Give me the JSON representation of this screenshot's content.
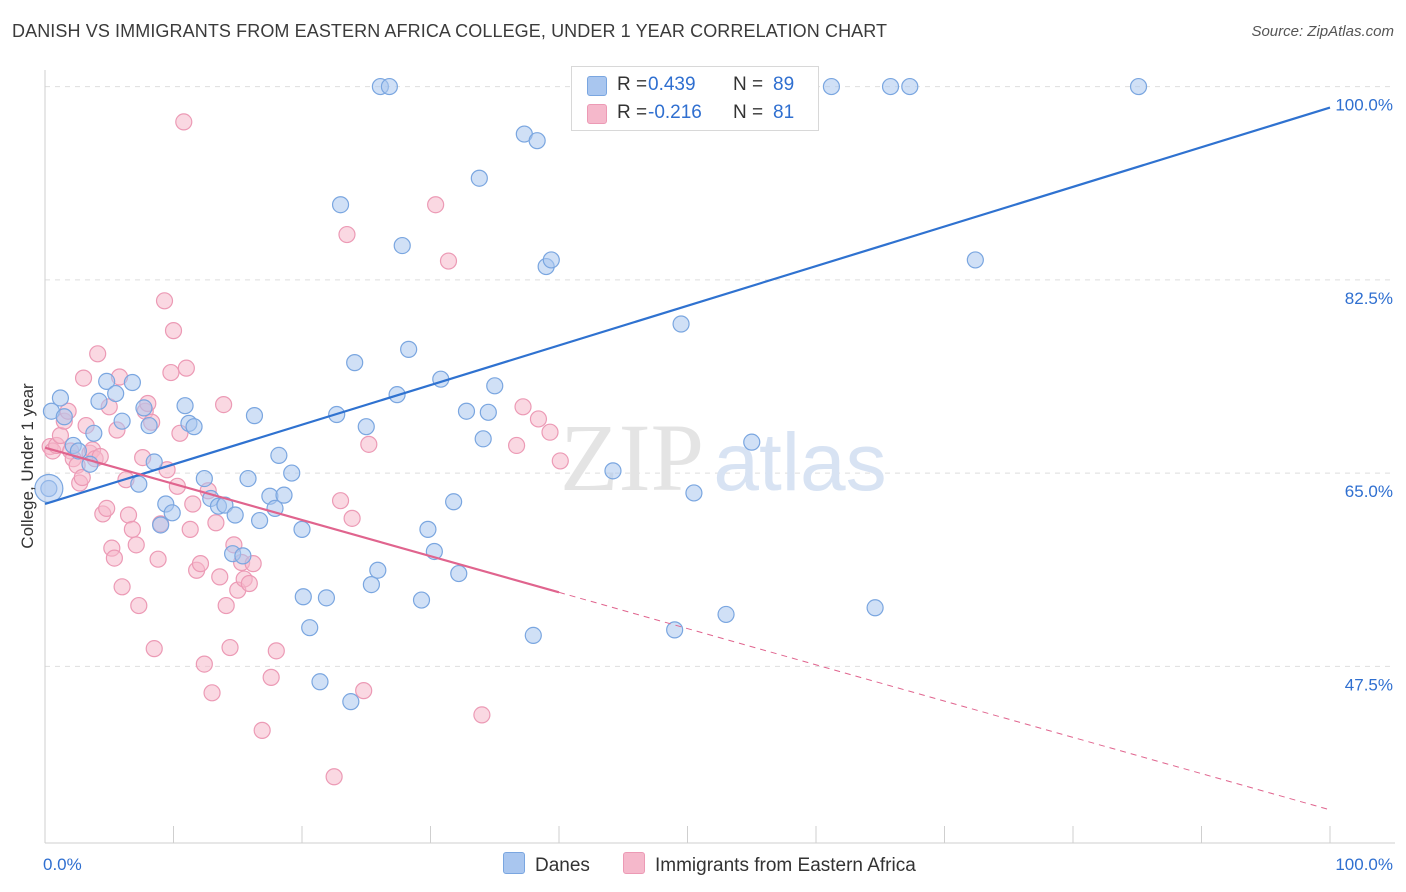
{
  "title": "DANISH VS IMMIGRANTS FROM EASTERN AFRICA COLLEGE, UNDER 1 YEAR CORRELATION CHART",
  "source": "Source: ZipAtlas.com",
  "watermark": {
    "zip": "ZIP",
    "atlas": "atlas"
  },
  "colors": {
    "danes_fill": "#a9c6ef",
    "danes_stroke": "#7aa6e0",
    "danes_line": "#2f72d0",
    "imm_fill": "#f5b8cb",
    "imm_stroke": "#ec9ab5",
    "imm_line": "#e0648e",
    "value_text": "#2f6fd0",
    "grid": "#dedede"
  },
  "legend_top": {
    "rows": [
      {
        "r_label": "R =",
        "r_value": "0.439",
        "n_label": "N =",
        "n_value": "89"
      },
      {
        "r_label": "R =",
        "r_value": "-0.216",
        "n_label": "N =",
        "n_value": "81"
      }
    ]
  },
  "legend_bottom": {
    "danes": "Danes",
    "immigrants": "Immigrants from Eastern Africa"
  },
  "chart_data": {
    "type": "scatter",
    "title": "DANISH VS IMMIGRANTS FROM EASTERN AFRICA COLLEGE, UNDER 1 YEAR CORRELATION CHART",
    "xlabel": "",
    "ylabel": "College, Under 1 year",
    "xlim": [
      0,
      100
    ],
    "ylim": [
      31.5,
      101.5
    ],
    "x_tick_labels": [
      "0.0%",
      "100.0%"
    ],
    "y_ticks": [
      47.5,
      65.0,
      82.5,
      100.0
    ],
    "y_tick_labels": [
      "47.5%",
      "65.0%",
      "82.5%",
      "100.0%"
    ],
    "grid": true,
    "legend_position": "bottom-center",
    "series": [
      {
        "name": "Danes",
        "R": 0.439,
        "N": 89,
        "trend": {
          "x": [
            0,
            100
          ],
          "y": [
            62.2,
            98.1
          ],
          "style": "solid"
        },
        "points": [
          [
            0.3,
            63.6
          ],
          [
            0.5,
            70.6
          ],
          [
            1.2,
            71.8
          ],
          [
            1.5,
            70.1
          ],
          [
            2.2,
            67.5
          ],
          [
            2.6,
            67.0
          ],
          [
            3.5,
            65.8
          ],
          [
            3.8,
            68.6
          ],
          [
            4.2,
            71.5
          ],
          [
            4.8,
            73.3
          ],
          [
            5.5,
            72.2
          ],
          [
            6.0,
            69.7
          ],
          [
            6.8,
            73.2
          ],
          [
            7.3,
            64.0
          ],
          [
            7.7,
            70.9
          ],
          [
            8.1,
            69.3
          ],
          [
            8.5,
            66.0
          ],
          [
            9.0,
            60.3
          ],
          [
            9.4,
            62.2
          ],
          [
            9.9,
            61.4
          ],
          [
            10.9,
            71.1
          ],
          [
            11.2,
            69.5
          ],
          [
            11.6,
            69.2
          ],
          [
            12.4,
            64.5
          ],
          [
            12.9,
            62.7
          ],
          [
            13.5,
            62.0
          ],
          [
            14.0,
            62.1
          ],
          [
            14.6,
            57.7
          ],
          [
            14.8,
            61.2
          ],
          [
            15.4,
            57.5
          ],
          [
            15.8,
            64.5
          ],
          [
            16.3,
            70.2
          ],
          [
            16.7,
            60.7
          ],
          [
            17.5,
            62.9
          ],
          [
            17.9,
            61.8
          ],
          [
            18.2,
            66.6
          ],
          [
            18.6,
            63.0
          ],
          [
            19.2,
            65.0
          ],
          [
            20.0,
            59.9
          ],
          [
            20.1,
            53.8
          ],
          [
            20.6,
            51.0
          ],
          [
            21.4,
            46.1
          ],
          [
            21.9,
            53.7
          ],
          [
            22.7,
            70.3
          ],
          [
            23.0,
            89.3
          ],
          [
            23.8,
            44.3
          ],
          [
            24.1,
            75.0
          ],
          [
            25.0,
            69.2
          ],
          [
            25.4,
            54.9
          ],
          [
            25.9,
            56.2
          ],
          [
            26.1,
            100.0
          ],
          [
            26.8,
            100.0
          ],
          [
            27.4,
            72.1
          ],
          [
            27.8,
            85.6
          ],
          [
            28.3,
            76.2
          ],
          [
            29.3,
            53.5
          ],
          [
            29.8,
            59.9
          ],
          [
            30.3,
            57.9
          ],
          [
            30.8,
            73.5
          ],
          [
            31.8,
            62.4
          ],
          [
            32.2,
            55.9
          ],
          [
            32.8,
            70.6
          ],
          [
            33.8,
            91.7
          ],
          [
            34.1,
            68.1
          ],
          [
            34.5,
            70.5
          ],
          [
            35.0,
            72.9
          ],
          [
            37.3,
            95.7
          ],
          [
            38.0,
            50.3
          ],
          [
            38.3,
            95.1
          ],
          [
            39.0,
            83.7
          ],
          [
            39.4,
            84.3
          ],
          [
            42.0,
            100.0
          ],
          [
            44.2,
            65.2
          ],
          [
            44.8,
            100.0
          ],
          [
            45.6,
            100.0
          ],
          [
            46.3,
            100.0
          ],
          [
            48.4,
            100.0
          ],
          [
            49.0,
            50.8
          ],
          [
            49.5,
            78.5
          ],
          [
            50.5,
            63.2
          ],
          [
            51.1,
            100.0
          ],
          [
            53.0,
            52.2
          ],
          [
            55.0,
            67.8
          ],
          [
            61.2,
            100.0
          ],
          [
            64.6,
            52.8
          ],
          [
            65.8,
            100.0
          ],
          [
            67.3,
            100.0
          ],
          [
            72.4,
            84.3
          ],
          [
            85.1,
            100.0
          ]
        ]
      },
      {
        "name": "Immigrants from Eastern Africa",
        "R": -0.216,
        "N": 81,
        "trend": {
          "x": [
            0,
            40
          ],
          "y": [
            67.3,
            54.2
          ],
          "style": "solid",
          "dashed_extension": {
            "x": [
              40,
              100
            ],
            "y": [
              54.2,
              34.5
            ]
          }
        },
        "points": [
          [
            0.4,
            67.4
          ],
          [
            0.6,
            67.0
          ],
          [
            0.9,
            67.5
          ],
          [
            1.2,
            68.4
          ],
          [
            1.5,
            69.7
          ],
          [
            1.8,
            70.6
          ],
          [
            2.0,
            67.0
          ],
          [
            2.2,
            66.3
          ],
          [
            2.5,
            65.7
          ],
          [
            2.7,
            64.1
          ],
          [
            2.9,
            64.6
          ],
          [
            3.0,
            73.6
          ],
          [
            3.2,
            69.3
          ],
          [
            3.5,
            66.8
          ],
          [
            3.7,
            67.1
          ],
          [
            3.9,
            66.3
          ],
          [
            4.1,
            75.8
          ],
          [
            4.3,
            66.5
          ],
          [
            4.5,
            61.3
          ],
          [
            4.8,
            61.8
          ],
          [
            5.0,
            71.0
          ],
          [
            5.2,
            58.2
          ],
          [
            5.4,
            57.3
          ],
          [
            5.6,
            68.9
          ],
          [
            5.8,
            73.7
          ],
          [
            6.0,
            54.7
          ],
          [
            6.3,
            64.4
          ],
          [
            6.5,
            61.2
          ],
          [
            6.8,
            59.9
          ],
          [
            7.1,
            58.5
          ],
          [
            7.3,
            53.0
          ],
          [
            7.6,
            66.4
          ],
          [
            7.8,
            70.6
          ],
          [
            8.0,
            71.3
          ],
          [
            8.3,
            69.6
          ],
          [
            8.5,
            49.1
          ],
          [
            8.8,
            57.2
          ],
          [
            9.0,
            60.4
          ],
          [
            9.3,
            80.6
          ],
          [
            9.5,
            65.3
          ],
          [
            9.8,
            74.1
          ],
          [
            10.0,
            77.9
          ],
          [
            10.3,
            63.8
          ],
          [
            10.5,
            68.6
          ],
          [
            10.8,
            96.8
          ],
          [
            11.0,
            74.5
          ],
          [
            11.3,
            59.9
          ],
          [
            11.5,
            62.2
          ],
          [
            11.8,
            56.2
          ],
          [
            12.1,
            56.8
          ],
          [
            12.4,
            47.7
          ],
          [
            12.7,
            63.4
          ],
          [
            13.0,
            45.1
          ],
          [
            13.3,
            60.5
          ],
          [
            13.6,
            55.6
          ],
          [
            13.9,
            71.2
          ],
          [
            14.1,
            53.0
          ],
          [
            14.4,
            49.2
          ],
          [
            14.7,
            58.5
          ],
          [
            15.0,
            54.4
          ],
          [
            15.3,
            56.9
          ],
          [
            15.5,
            55.4
          ],
          [
            15.9,
            55.0
          ],
          [
            16.2,
            56.8
          ],
          [
            16.9,
            41.7
          ],
          [
            17.6,
            46.5
          ],
          [
            18.0,
            48.9
          ],
          [
            22.5,
            37.5
          ],
          [
            23.0,
            62.5
          ],
          [
            23.5,
            86.6
          ],
          [
            23.9,
            60.9
          ],
          [
            24.8,
            45.3
          ],
          [
            25.2,
            67.6
          ],
          [
            30.4,
            89.3
          ],
          [
            31.4,
            84.2
          ],
          [
            34.0,
            43.1
          ],
          [
            36.7,
            67.5
          ],
          [
            37.2,
            71.0
          ],
          [
            38.4,
            69.9
          ],
          [
            39.3,
            68.7
          ],
          [
            40.1,
            66.1
          ]
        ]
      }
    ]
  }
}
